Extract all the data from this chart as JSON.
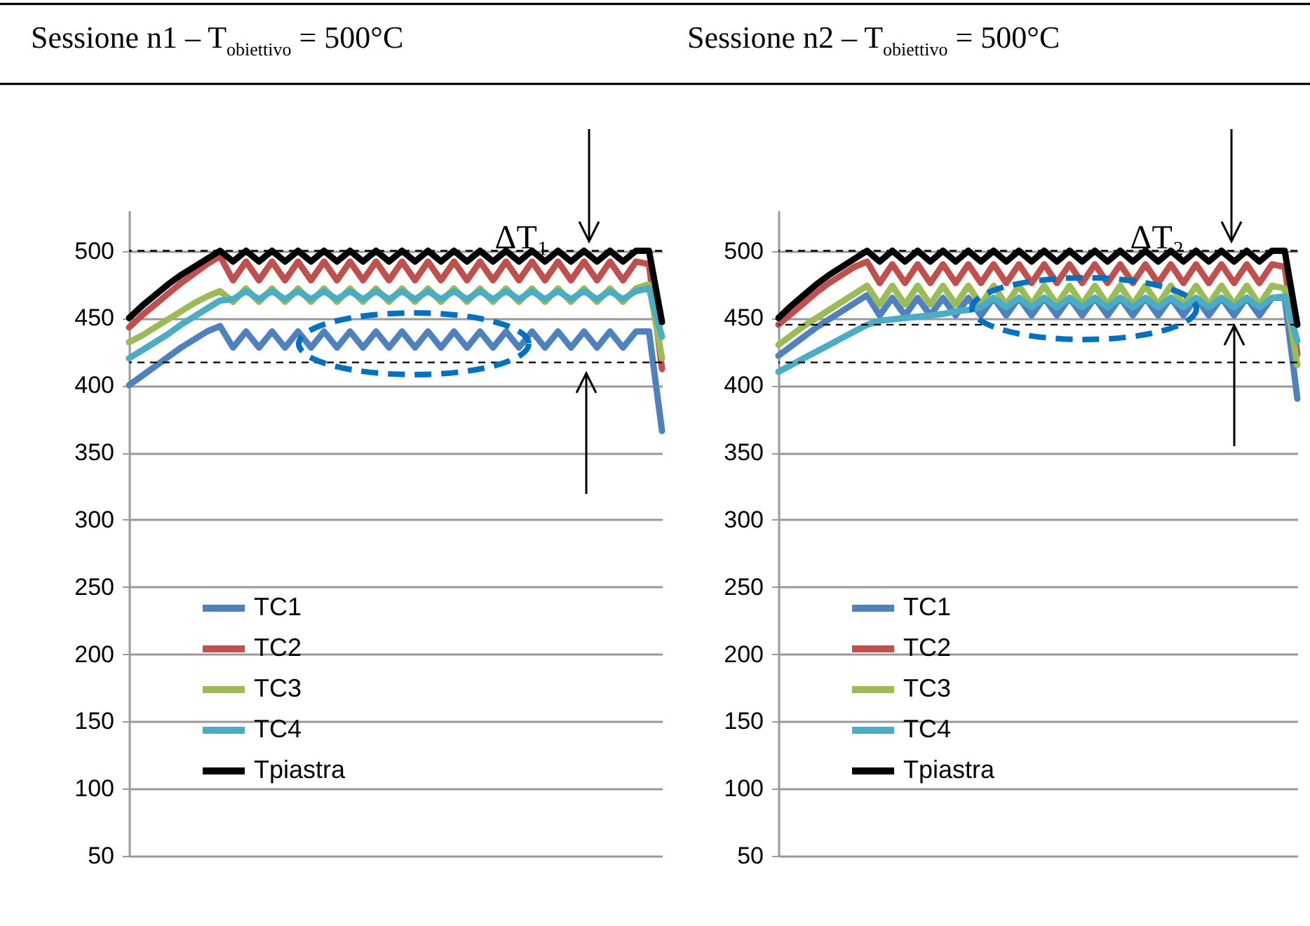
{
  "chart_data": [
    {
      "type": "line",
      "title": "Sessione n1 – T$_{obiettivo}$ = 500°C",
      "annotations": [
        "ΔT₁"
      ],
      "categories": [
        null,
        null,
        null,
        null,
        null,
        null,
        null,
        null,
        null,
        null,
        null,
        null,
        null,
        null,
        null,
        null,
        null,
        null,
        null,
        null,
        null,
        null,
        null,
        null,
        null,
        null,
        null,
        null,
        null,
        null,
        null,
        null,
        null,
        null,
        null,
        null,
        null,
        null,
        null,
        null,
        null,
        null
      ],
      "series": [
        {
          "name": "TC1",
          "color": "#4f81bd",
          "values": [
            400,
            407,
            414,
            421,
            428,
            434,
            440,
            444,
            428,
            440,
            428,
            440,
            428,
            440,
            428,
            440,
            428,
            440,
            428,
            440,
            428,
            440,
            428,
            440,
            428,
            440,
            428,
            440,
            428,
            440,
            428,
            440,
            428,
            440,
            428,
            440,
            428,
            440,
            428,
            440,
            440,
            366
          ]
        },
        {
          "name": "TC2",
          "color": "#c0504d",
          "values": [
            443,
            452,
            460,
            468,
            476,
            483,
            490,
            496,
            478,
            492,
            478,
            492,
            478,
            492,
            478,
            492,
            478,
            492,
            478,
            492,
            478,
            492,
            478,
            492,
            478,
            492,
            478,
            492,
            478,
            492,
            478,
            492,
            478,
            492,
            478,
            492,
            478,
            492,
            478,
            492,
            490,
            412
          ]
        },
        {
          "name": "TC3",
          "color": "#9bbb59",
          "values": [
            432,
            437,
            443,
            449,
            455,
            461,
            466,
            470,
            462,
            472,
            462,
            472,
            462,
            472,
            462,
            472,
            462,
            472,
            462,
            472,
            462,
            472,
            462,
            472,
            462,
            472,
            462,
            472,
            462,
            472,
            462,
            472,
            462,
            472,
            462,
            472,
            462,
            472,
            462,
            472,
            475,
            420
          ]
        },
        {
          "name": "TC4",
          "color": "#4bacc6",
          "values": [
            420,
            426,
            432,
            438,
            445,
            451,
            457,
            463,
            464,
            470,
            464,
            470,
            464,
            470,
            464,
            470,
            464,
            470,
            464,
            470,
            464,
            470,
            464,
            470,
            464,
            470,
            464,
            470,
            464,
            470,
            464,
            470,
            464,
            470,
            464,
            470,
            464,
            470,
            464,
            470,
            472,
            436
          ]
        },
        {
          "name": "Tpiastra",
          "color": "#000000",
          "values": [
            450,
            459,
            467,
            475,
            482,
            488,
            494,
            500,
            492,
            500,
            492,
            500,
            492,
            500,
            492,
            500,
            492,
            500,
            492,
            500,
            492,
            500,
            492,
            500,
            492,
            500,
            492,
            500,
            492,
            500,
            492,
            500,
            492,
            500,
            492,
            500,
            492,
            500,
            492,
            500,
            500,
            447
          ]
        }
      ],
      "ylim": [
        50,
        530
      ],
      "yticks": [
        50,
        100,
        150,
        200,
        250,
        300,
        350,
        400,
        450,
        500
      ],
      "grid": "y",
      "legend": "bottom left",
      "tick_labels": "y",
      "line_style": "solid",
      "marker": "none",
      "ref_lines": [
        {
          "axis": "y",
          "value": 500,
          "line_style": "dashed",
          "color": "#000000"
        },
        {
          "axis": "y",
          "value": 417,
          "line_style": "dashed",
          "color": "#000000"
        }
      ]
    },
    {
      "type": "line",
      "title": "Sessione n2 – T$_{obiettivo}$ = 500°C",
      "annotations": [
        "ΔT₂"
      ],
      "categories": [
        null,
        null,
        null,
        null,
        null,
        null,
        null,
        null,
        null,
        null,
        null,
        null,
        null,
        null,
        null,
        null,
        null,
        null,
        null,
        null,
        null,
        null,
        null,
        null,
        null,
        null,
        null,
        null,
        null,
        null,
        null,
        null,
        null,
        null,
        null,
        null,
        null,
        null,
        null,
        null,
        null,
        null
      ],
      "series": [
        {
          "name": "TC1",
          "color": "#4f81bd",
          "values": [
            422,
            429,
            436,
            443,
            449,
            455,
            461,
            467,
            452,
            465,
            452,
            465,
            452,
            465,
            452,
            465,
            452,
            465,
            452,
            465,
            452,
            465,
            452,
            465,
            452,
            465,
            452,
            465,
            452,
            465,
            452,
            465,
            452,
            465,
            452,
            465,
            452,
            465,
            452,
            465,
            465,
            390
          ]
        },
        {
          "name": "TC2",
          "color": "#c0504d",
          "values": [
            445,
            453,
            461,
            469,
            476,
            482,
            488,
            492,
            476,
            490,
            476,
            490,
            476,
            490,
            476,
            490,
            476,
            490,
            476,
            490,
            476,
            490,
            476,
            490,
            476,
            490,
            476,
            490,
            476,
            490,
            476,
            490,
            476,
            490,
            476,
            490,
            476,
            490,
            476,
            490,
            488,
            423
          ]
        },
        {
          "name": "TC3",
          "color": "#9bbb59",
          "values": [
            430,
            437,
            444,
            450,
            456,
            462,
            468,
            474,
            460,
            474,
            460,
            474,
            460,
            474,
            460,
            474,
            460,
            474,
            460,
            474,
            460,
            474,
            460,
            474,
            460,
            474,
            460,
            474,
            460,
            474,
            460,
            474,
            460,
            474,
            460,
            474,
            460,
            474,
            460,
            474,
            472,
            415
          ]
        },
        {
          "name": "TC4",
          "color": "#4bacc6",
          "values": [
            410,
            415,
            420,
            425,
            430,
            435,
            440,
            445,
            448,
            449,
            450,
            451,
            452,
            453,
            455,
            456,
            458,
            465,
            458,
            465,
            458,
            465,
            458,
            465,
            458,
            465,
            458,
            465,
            458,
            465,
            458,
            465,
            458,
            465,
            458,
            465,
            458,
            465,
            458,
            465,
            466,
            433
          ]
        },
        {
          "name": "Tpiastra",
          "color": "#000000",
          "values": [
            450,
            459,
            467,
            475,
            482,
            488,
            494,
            500,
            492,
            500,
            492,
            500,
            492,
            500,
            492,
            500,
            492,
            500,
            492,
            500,
            492,
            500,
            492,
            500,
            492,
            500,
            492,
            500,
            492,
            500,
            492,
            500,
            492,
            500,
            492,
            500,
            492,
            500,
            492,
            500,
            500,
            445
          ]
        }
      ],
      "ylim": [
        50,
        530
      ],
      "yticks": [
        50,
        100,
        150,
        200,
        250,
        300,
        350,
        400,
        450,
        500
      ],
      "grid": "y",
      "legend": "bottom left",
      "tick_labels": "y",
      "line_style": "solid",
      "marker": "none",
      "ref_lines": [
        {
          "axis": "y",
          "value": 500,
          "line_style": "dashed",
          "color": "#000000"
        },
        {
          "axis": "y",
          "value": 445,
          "line_style": "dashed",
          "color": "#000000"
        },
        {
          "axis": "y",
          "value": 417,
          "line_style": "dashed",
          "color": "#000000"
        }
      ]
    }
  ]
}
